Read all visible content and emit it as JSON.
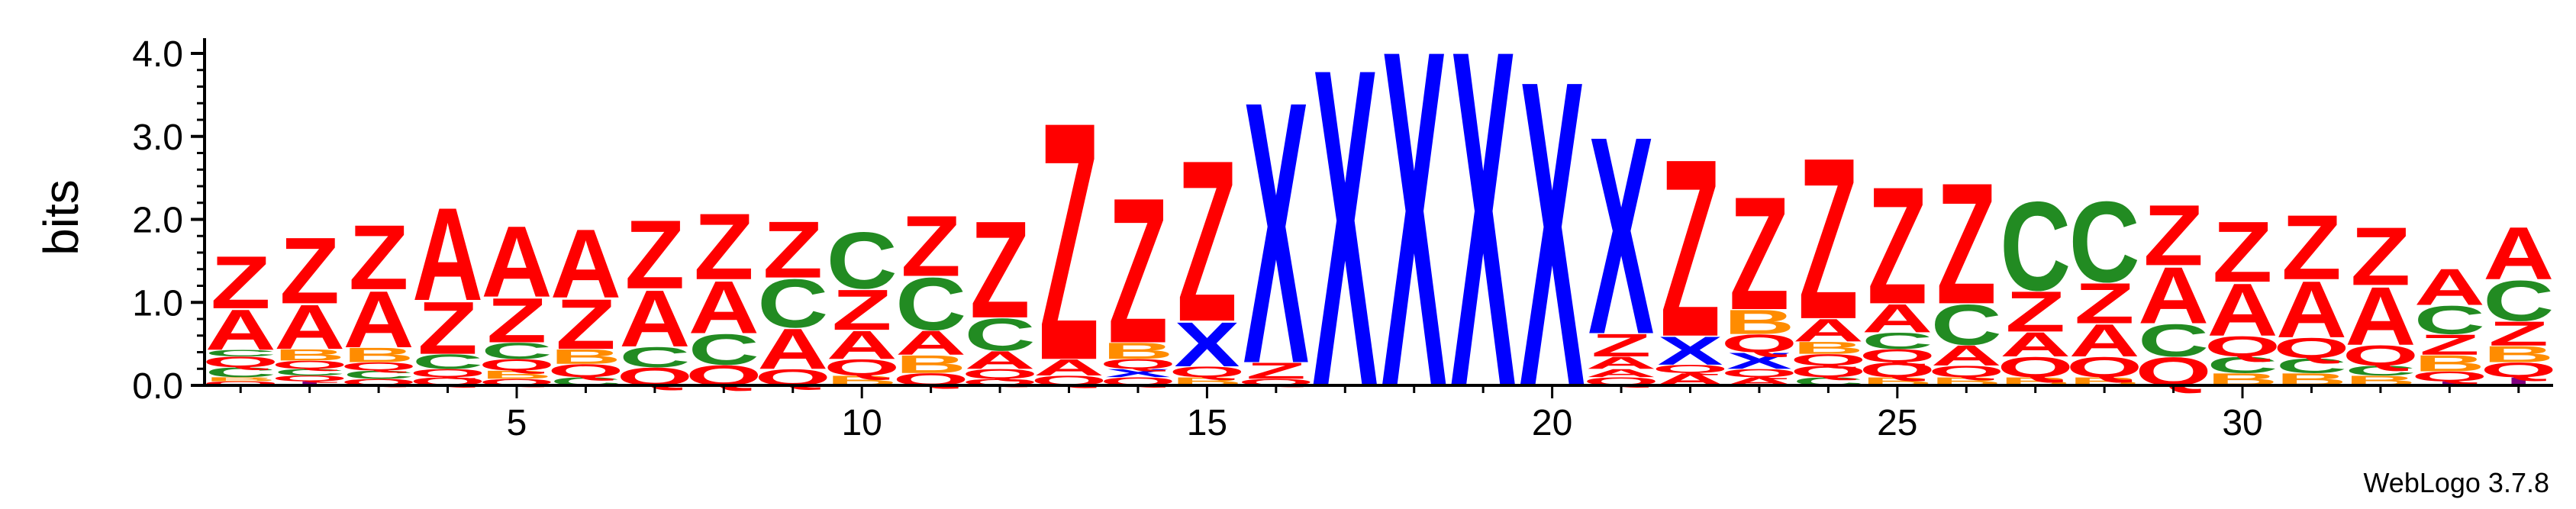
{
  "chart_data": {
    "type": "sequence-logo",
    "ylabel": "bits",
    "ylim": [
      0,
      4.2
    ],
    "y_ticks": [
      "0.0",
      "1.0",
      "2.0",
      "3.0",
      "4.0"
    ],
    "x_ticks": [
      "5",
      "10",
      "15",
      "20",
      "25",
      "30"
    ],
    "x_tick_values": [
      5,
      10,
      15,
      20,
      25,
      30
    ],
    "positions": 34,
    "credit": "WebLogo 3.7.8",
    "colors": {
      "Z": "#ff0000",
      "A": "#ff0000",
      "Q": "#ff0000",
      "X": "#0000ff",
      "C": "#228b22",
      "B": "#ff8c00",
      "I": "#800080"
    },
    "stacks": [
      {
        "position": 1,
        "letters": [
          [
            "Q",
            0.05
          ],
          [
            "B",
            0.05
          ],
          [
            "C",
            0.12
          ],
          [
            "Q",
            0.13
          ],
          [
            "C",
            0.08
          ],
          [
            "A",
            0.5
          ],
          [
            "Z",
            0.65
          ]
        ]
      },
      {
        "position": 2,
        "letters": [
          [
            "I",
            0.05
          ],
          [
            "Q",
            0.07
          ],
          [
            "C",
            0.08
          ],
          [
            "Q",
            0.1
          ],
          [
            "B",
            0.14
          ],
          [
            "A",
            0.55
          ],
          [
            "Z",
            0.82
          ]
        ]
      },
      {
        "position": 3,
        "letters": [
          [
            "Q",
            0.08
          ],
          [
            "C",
            0.1
          ],
          [
            "Q",
            0.1
          ],
          [
            "B",
            0.18
          ],
          [
            "A",
            0.7
          ],
          [
            "Z",
            0.8
          ]
        ]
      },
      {
        "position": 4,
        "letters": [
          [
            "Q",
            0.1
          ],
          [
            "Q",
            0.1
          ],
          [
            "C",
            0.18
          ],
          [
            "Z",
            0.65
          ],
          [
            "A",
            1.15
          ]
        ]
      },
      {
        "position": 5,
        "letters": [
          [
            "Q",
            0.08
          ],
          [
            "B",
            0.1
          ],
          [
            "Q",
            0.14
          ],
          [
            "C",
            0.2
          ],
          [
            "Z",
            0.55
          ],
          [
            "A",
            0.88
          ]
        ]
      },
      {
        "position": 6,
        "letters": [
          [
            "C",
            0.1
          ],
          [
            "Q",
            0.16
          ],
          [
            "B",
            0.18
          ],
          [
            "Z",
            0.62
          ],
          [
            "A",
            0.85
          ]
        ]
      },
      {
        "position": 7,
        "letters": [
          [
            "Q",
            0.22
          ],
          [
            "C",
            0.25
          ],
          [
            "A",
            0.7
          ],
          [
            "Z",
            0.85
          ]
        ]
      },
      {
        "position": 8,
        "letters": [
          [
            "Q",
            0.25
          ],
          [
            "C",
            0.38
          ],
          [
            "A",
            0.65
          ],
          [
            "Z",
            0.82
          ]
        ]
      },
      {
        "position": 9,
        "letters": [
          [
            "Q",
            0.2
          ],
          [
            "A",
            0.5
          ],
          [
            "C",
            0.6
          ],
          [
            "Z",
            0.7
          ]
        ]
      },
      {
        "position": 10,
        "letters": [
          [
            "B",
            0.12
          ],
          [
            "Q",
            0.2
          ],
          [
            "A",
            0.35
          ],
          [
            "Z",
            0.5
          ],
          [
            "C",
            0.7
          ]
        ]
      },
      {
        "position": 11,
        "letters": [
          [
            "Q",
            0.15
          ],
          [
            "B",
            0.22
          ],
          [
            "A",
            0.3
          ],
          [
            "C",
            0.65
          ],
          [
            "Z",
            0.75
          ]
        ]
      },
      {
        "position": 12,
        "letters": [
          [
            "Q",
            0.08
          ],
          [
            "Q",
            0.12
          ],
          [
            "A",
            0.22
          ],
          [
            "C",
            0.4
          ],
          [
            "Z",
            1.2
          ]
        ]
      },
      {
        "position": 13,
        "letters": [
          [
            "Q",
            0.12
          ],
          [
            "A",
            0.2
          ],
          [
            "Z",
            2.95
          ]
        ]
      },
      {
        "position": 14,
        "letters": [
          [
            "Q",
            0.1
          ],
          [
            "X",
            0.1
          ],
          [
            "Q",
            0.12
          ],
          [
            "B",
            0.2
          ],
          [
            "Z",
            1.8
          ]
        ]
      },
      {
        "position": 15,
        "letters": [
          [
            "B",
            0.1
          ],
          [
            "Q",
            0.13
          ],
          [
            "X",
            0.55
          ],
          [
            "Z",
            2.0
          ]
        ]
      },
      {
        "position": 16,
        "letters": [
          [
            "Q",
            0.08
          ],
          [
            "Z",
            0.2
          ],
          [
            "X",
            3.25
          ]
        ]
      },
      {
        "position": 17,
        "letters": [
          [
            "X",
            3.95
          ]
        ]
      },
      {
        "position": 18,
        "letters": [
          [
            "X",
            4.18
          ]
        ]
      },
      {
        "position": 19,
        "letters": [
          [
            "X",
            4.18
          ]
        ]
      },
      {
        "position": 20,
        "letters": [
          [
            "X",
            3.8
          ]
        ]
      },
      {
        "position": 21,
        "letters": [
          [
            "Q",
            0.1
          ],
          [
            "A",
            0.1
          ],
          [
            "A",
            0.15
          ],
          [
            "Z",
            0.28
          ],
          [
            "X",
            2.45
          ]
        ]
      },
      {
        "position": 22,
        "letters": [
          [
            "A",
            0.15
          ],
          [
            "Q",
            0.1
          ],
          [
            "X",
            0.35
          ],
          [
            "Z",
            2.2
          ]
        ]
      },
      {
        "position": 23,
        "letters": [
          [
            "A",
            0.1
          ],
          [
            "Q",
            0.1
          ],
          [
            "X",
            0.2
          ],
          [
            "Q",
            0.22
          ],
          [
            "B",
            0.3
          ],
          [
            "Z",
            1.4
          ]
        ]
      },
      {
        "position": 24,
        "letters": [
          [
            "C",
            0.1
          ],
          [
            "Q",
            0.14
          ],
          [
            "Q",
            0.14
          ],
          [
            "B",
            0.15
          ],
          [
            "A",
            0.28
          ],
          [
            "Z",
            2.0
          ]
        ]
      },
      {
        "position": 25,
        "letters": [
          [
            "B",
            0.1
          ],
          [
            "Q",
            0.18
          ],
          [
            "Q",
            0.16
          ],
          [
            "C",
            0.2
          ],
          [
            "A",
            0.35
          ],
          [
            "Z",
            1.45
          ]
        ]
      },
      {
        "position": 26,
        "letters": [
          [
            "B",
            0.1
          ],
          [
            "Q",
            0.14
          ],
          [
            "A",
            0.25
          ],
          [
            "C",
            0.5
          ],
          [
            "Z",
            1.5
          ]
        ]
      },
      {
        "position": 27,
        "letters": [
          [
            "B",
            0.1
          ],
          [
            "Q",
            0.25
          ],
          [
            "A",
            0.3
          ],
          [
            "Z",
            0.5
          ],
          [
            "C",
            1.1
          ]
        ]
      },
      {
        "position": 28,
        "letters": [
          [
            "B",
            0.1
          ],
          [
            "Q",
            0.25
          ],
          [
            "A",
            0.4
          ],
          [
            "Z",
            0.5
          ],
          [
            "C",
            1.0
          ]
        ]
      },
      {
        "position": 29,
        "letters": [
          [
            "Q",
            0.35
          ],
          [
            "C",
            0.4
          ],
          [
            "A",
            0.7
          ],
          [
            "Z",
            0.75
          ]
        ]
      },
      {
        "position": 30,
        "letters": [
          [
            "B",
            0.15
          ],
          [
            "C",
            0.2
          ],
          [
            "Q",
            0.25
          ],
          [
            "A",
            0.65
          ],
          [
            "Z",
            0.75
          ]
        ]
      },
      {
        "position": 31,
        "letters": [
          [
            "B",
            0.15
          ],
          [
            "C",
            0.18
          ],
          [
            "Q",
            0.25
          ],
          [
            "A",
            0.7
          ],
          [
            "Z",
            0.8
          ]
        ]
      },
      {
        "position": 32,
        "letters": [
          [
            "B",
            0.12
          ],
          [
            "C",
            0.12
          ],
          [
            "Q",
            0.25
          ],
          [
            "A",
            0.72
          ],
          [
            "Z",
            0.72
          ]
        ]
      },
      {
        "position": 33,
        "letters": [
          [
            "I",
            0.05
          ],
          [
            "Q",
            0.12
          ],
          [
            "B",
            0.2
          ],
          [
            "Z",
            0.25
          ],
          [
            "C",
            0.35
          ],
          [
            "A",
            0.45
          ]
        ]
      },
      {
        "position": 34,
        "letters": [
          [
            "I",
            0.1
          ],
          [
            "Q",
            0.18
          ],
          [
            "B",
            0.2
          ],
          [
            "Z",
            0.3
          ],
          [
            "C",
            0.5
          ],
          [
            "A",
            0.65
          ]
        ]
      }
    ]
  }
}
